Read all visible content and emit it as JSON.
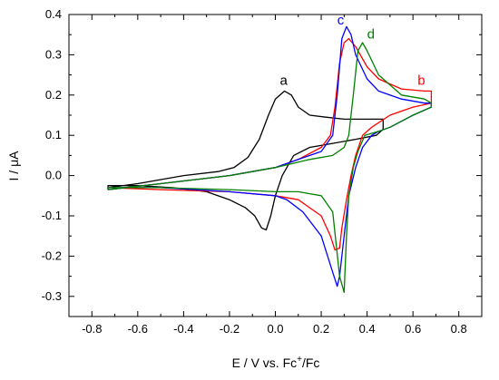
{
  "chart_data": {
    "type": "line",
    "title": "",
    "xlabel_main": "E / V vs. Fc",
    "xlabel_sup": "+",
    "xlabel_tail": "/Fc",
    "ylabel": "I / μA",
    "xlim": [
      -0.9,
      0.9
    ],
    "ylim": [
      -0.35,
      0.4
    ],
    "x_ticks": [
      -0.8,
      -0.6,
      -0.4,
      -0.2,
      0.0,
      0.2,
      0.4,
      0.6,
      0.8
    ],
    "x_tick_labels": [
      "-0.8",
      "-0.6",
      "-0.4",
      "-0.2",
      "0.0",
      "0.2",
      "0.4",
      "0.6",
      "0.8"
    ],
    "y_ticks": [
      -0.3,
      -0.2,
      -0.1,
      0.0,
      0.1,
      0.2,
      0.3,
      0.4
    ],
    "y_tick_labels": [
      "-0.3",
      "-0.2",
      "-0.1",
      "0.0",
      "0.1",
      "0.2",
      "0.3",
      "0.4"
    ],
    "grid": false,
    "series": [
      {
        "name": "a",
        "color": "#000000",
        "label_at": [
          0.02,
          0.225
        ],
        "x": [
          -0.73,
          -0.6,
          -0.4,
          -0.25,
          -0.18,
          -0.12,
          -0.07,
          -0.03,
          0.0,
          0.04,
          0.07,
          0.1,
          0.15,
          0.22,
          0.3,
          0.4,
          0.47,
          0.47,
          0.44,
          0.35,
          0.25,
          0.15,
          0.08,
          0.03,
          0.0,
          -0.02,
          -0.04,
          -0.06,
          -0.09,
          -0.13,
          -0.2,
          -0.3,
          -0.45,
          -0.6,
          -0.73,
          -0.73
        ],
        "y": [
          -0.03,
          -0.02,
          0.0,
          0.01,
          0.02,
          0.045,
          0.09,
          0.15,
          0.19,
          0.21,
          0.2,
          0.17,
          0.15,
          0.145,
          0.14,
          0.14,
          0.14,
          0.115,
          0.1,
          0.09,
          0.08,
          0.07,
          0.05,
          0.0,
          -0.05,
          -0.1,
          -0.135,
          -0.13,
          -0.1,
          -0.08,
          -0.06,
          -0.04,
          -0.03,
          -0.025,
          -0.025,
          -0.03
        ]
      },
      {
        "name": "b",
        "color": "#ff0000",
        "label_at": [
          0.62,
          0.225
        ],
        "x": [
          -0.73,
          -0.5,
          -0.2,
          0.0,
          0.1,
          0.2,
          0.24,
          0.26,
          0.28,
          0.3,
          0.32,
          0.35,
          0.4,
          0.45,
          0.55,
          0.65,
          0.68,
          0.68,
          0.6,
          0.5,
          0.42,
          0.38,
          0.35,
          0.33,
          0.31,
          0.29,
          0.28,
          0.26,
          0.24,
          0.2,
          0.15,
          0.1,
          0.0,
          -0.2,
          -0.5,
          -0.73,
          -0.73
        ],
        "y": [
          -0.035,
          -0.02,
          0.0,
          0.02,
          0.04,
          0.07,
          0.1,
          0.17,
          0.28,
          0.33,
          0.34,
          0.32,
          0.27,
          0.24,
          0.215,
          0.21,
          0.21,
          0.18,
          0.17,
          0.15,
          0.12,
          0.1,
          0.05,
          0.0,
          -0.06,
          -0.13,
          -0.18,
          -0.185,
          -0.15,
          -0.1,
          -0.08,
          -0.06,
          -0.05,
          -0.04,
          -0.035,
          -0.03,
          -0.035
        ]
      },
      {
        "name": "c",
        "color": "#0000ff",
        "label_at": [
          0.27,
          0.375
        ],
        "x": [
          -0.73,
          -0.5,
          -0.2,
          0.0,
          0.1,
          0.2,
          0.25,
          0.27,
          0.29,
          0.31,
          0.33,
          0.35,
          0.4,
          0.45,
          0.55,
          0.65,
          0.68,
          0.68,
          0.6,
          0.5,
          0.45,
          0.42,
          0.38,
          0.35,
          0.32,
          0.3,
          0.28,
          0.27,
          0.25,
          0.2,
          0.12,
          0.05,
          0.0,
          -0.2,
          -0.5,
          -0.73,
          -0.73
        ],
        "y": [
          -0.035,
          -0.02,
          0.0,
          0.02,
          0.04,
          0.06,
          0.1,
          0.2,
          0.34,
          0.37,
          0.35,
          0.3,
          0.24,
          0.21,
          0.19,
          0.18,
          0.18,
          0.17,
          0.15,
          0.12,
          0.11,
          0.1,
          0.07,
          0.02,
          -0.05,
          -0.15,
          -0.25,
          -0.275,
          -0.24,
          -0.15,
          -0.09,
          -0.06,
          -0.05,
          -0.04,
          -0.03,
          -0.03,
          -0.035
        ]
      },
      {
        "name": "d",
        "color": "#008000",
        "label_at": [
          0.4,
          0.34
        ],
        "x": [
          -0.73,
          -0.5,
          -0.2,
          0.0,
          0.15,
          0.25,
          0.3,
          0.32,
          0.34,
          0.36,
          0.38,
          0.4,
          0.45,
          0.55,
          0.65,
          0.68,
          0.68,
          0.6,
          0.5,
          0.45,
          0.42,
          0.39,
          0.36,
          0.34,
          0.32,
          0.31,
          0.3,
          0.28,
          0.25,
          0.2,
          0.15,
          0.1,
          0.0,
          -0.2,
          -0.5,
          -0.73,
          -0.73
        ],
        "y": [
          -0.035,
          -0.02,
          0.0,
          0.02,
          0.04,
          0.05,
          0.07,
          0.1,
          0.2,
          0.31,
          0.33,
          0.31,
          0.25,
          0.2,
          0.19,
          0.18,
          0.17,
          0.15,
          0.12,
          0.11,
          0.105,
          0.1,
          0.06,
          0.02,
          -0.05,
          -0.15,
          -0.29,
          -0.25,
          -0.09,
          -0.05,
          -0.045,
          -0.04,
          -0.04,
          -0.035,
          -0.03,
          -0.03,
          -0.035
        ]
      }
    ]
  }
}
